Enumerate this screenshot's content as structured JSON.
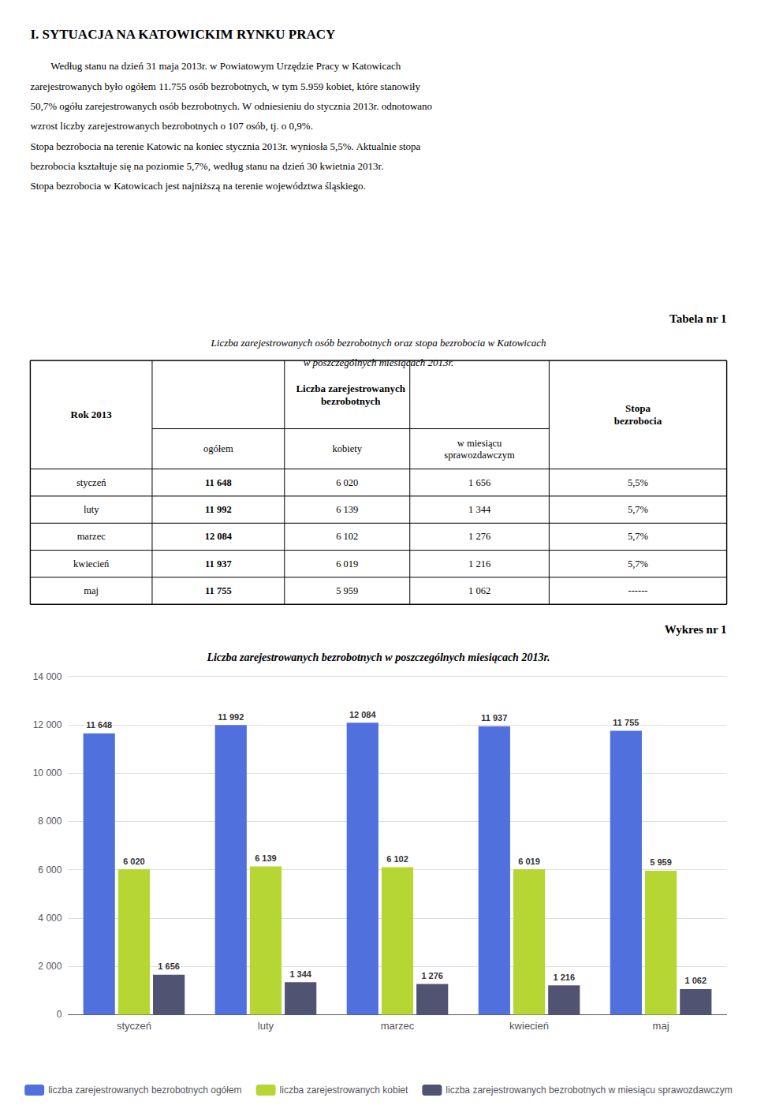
{
  "chart_data": [
    {
      "type": "text",
      "title": "I. SYTUACJA NA KATOWICKIM RYNKU PRACY",
      "annotations": [
        "        Według stanu na dzień 31 maja 2013r. w Powiatowym Urzędzie Pracy w Katowicach",
        "zarejestrowanych było ogółem 11.755 osób bezrobotnych, w tym 5.959 kobiet, które stanowiły",
        "50,7% ogółu zarejestrowanych osób bezrobotnych. W odniesieniu do stycznia 2013r. odnotowano",
        "wzrost liczby zarejestrowanych bezrobotnych o 107 osób, tj. o 0,9%.",
        "Stopa bezrobocia na terenie Katowic na koniec stycznia 2013r. wyniosła 5,5%. Aktualnie stopa",
        "bezrobocia kształtuje się na poziomie 5,7%, według stanu na dzień 30 kwietnia 2013r.",
        "Stopa bezrobocia w Katowicach jest najniższą na terenie województwa śląskiego."
      ]
    },
    {
      "type": "table",
      "title": "Tabela nr 1",
      "subtitle": "Liczba zarejestrowanych osób bezrobotnych oraz stopa bezrobocia w Katowicach\nw poszczególnych miesiącach 2013r.",
      "header": [
        "Rok 2013",
        {
          "label": "Liczba zarejestrowanych\nbezrobotnych",
          "columns": [
            "ogółem",
            "kobiety",
            "w miesiącu\nsprawozdawczym"
          ]
        },
        "Stopa\nbezrobocia"
      ],
      "rows": [
        [
          "styczeń",
          "11 648",
          "6 020",
          "1 656",
          "5,5%"
        ],
        [
          "luty",
          "11 992",
          "6 139",
          "1 344",
          "5,7%"
        ],
        [
          "marzec",
          "12 084",
          "6 102",
          "1 276",
          "5,7%"
        ],
        [
          "kwiecień",
          "11 937",
          "6 019",
          "1 216",
          "5,7%"
        ],
        [
          "maj",
          "11 755",
          "5 959",
          "1 062",
          "------"
        ]
      ]
    },
    {
      "type": "bar",
      "title": "Liczba zarejestrowanych bezrobotnych w poszczególnych miesiącach 2013r.",
      "annotations": [
        "Wykres nr 1"
      ],
      "categories": [
        "styczeń",
        "luty",
        "marzec",
        "kwiecień",
        "maj"
      ],
      "series": [
        {
          "name": "liczba zarejestrowanych bezrobotnych ogółem",
          "values": [
            11648,
            11992,
            12084,
            11937,
            11755
          ],
          "value_labels": [
            "11 648",
            "11 992",
            "12 084",
            "11 937",
            "11 755"
          ]
        },
        {
          "name": "liczba zarejestrowanych kobiet",
          "values": [
            6020,
            6139,
            6102,
            6019,
            5959
          ],
          "value_labels": [
            "6 020",
            "6 139",
            "6 102",
            "6 019",
            "5 959"
          ]
        },
        {
          "name": "liczba zarejestrowanych bezrobotnych w miesiącu sprawozdawczym",
          "values": [
            1656,
            1344,
            1276,
            1216,
            1062
          ],
          "value_labels": [
            "1 656",
            "1 344",
            "1 276",
            "1 216",
            "1 062"
          ]
        }
      ],
      "ylim": [
        0,
        14000
      ],
      "yticks": [
        0,
        {
          "value": 2000,
          "label": "2 000"
        },
        {
          "value": 4000,
          "label": "4 000"
        },
        {
          "value": 6000,
          "label": "6 000"
        },
        {
          "value": 8000,
          "label": "8 000"
        },
        {
          "value": 10000,
          "label": "10 000"
        },
        {
          "value": 12000,
          "label": "12 000"
        },
        {
          "value": 14000,
          "label": "14 000"
        }
      ],
      "grid": true,
      "data_labels": true,
      "legend": "bottom"
    }
  ]
}
